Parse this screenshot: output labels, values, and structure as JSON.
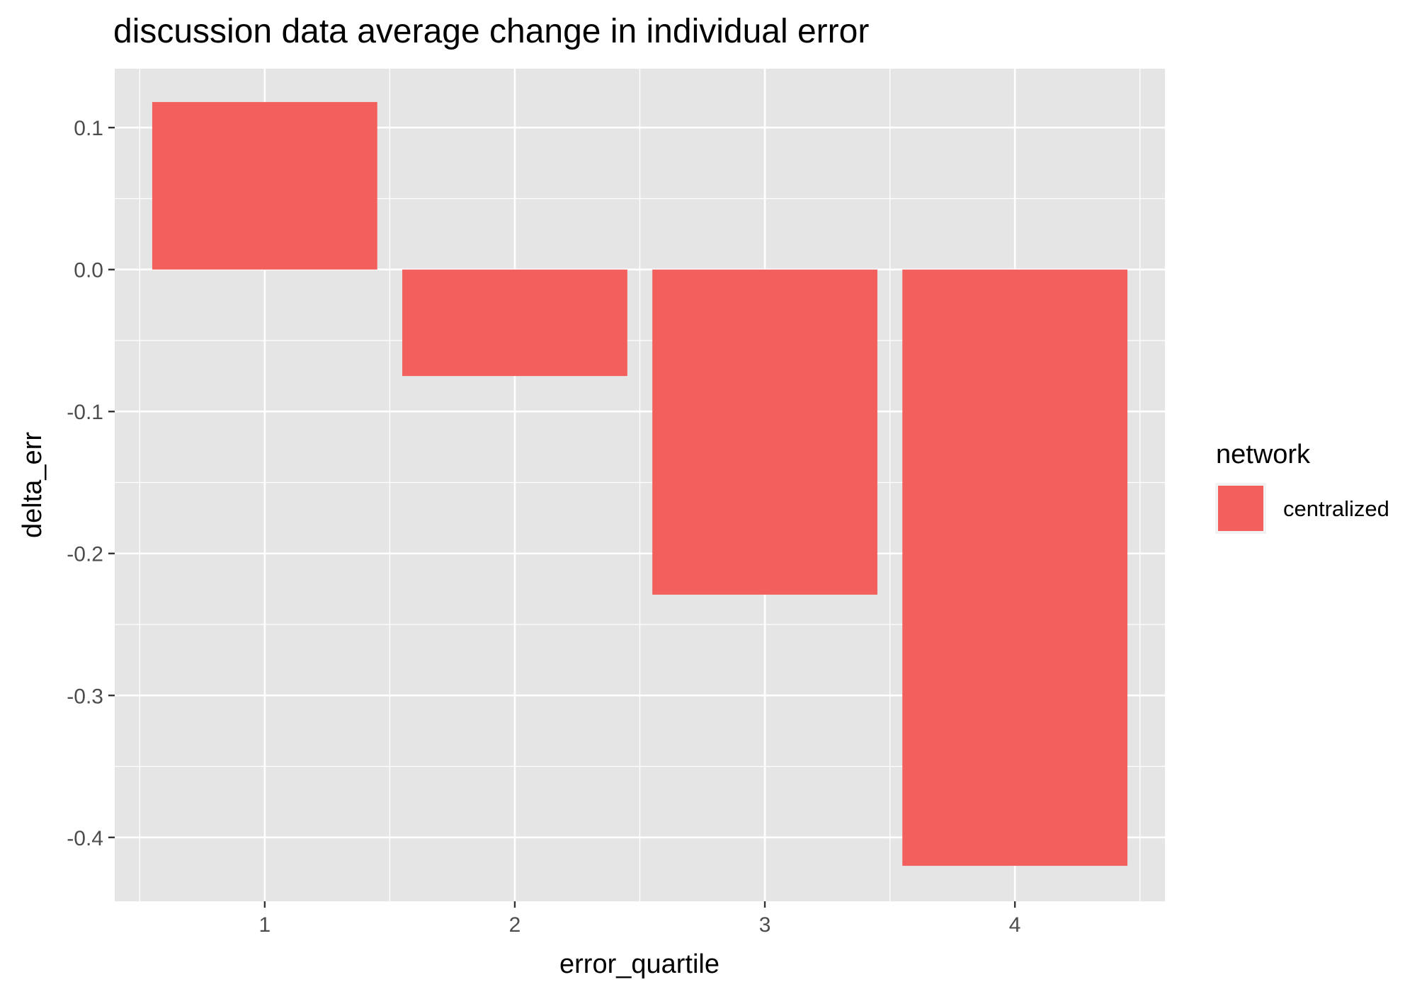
{
  "chart_data": {
    "type": "bar",
    "title": "discussion data average change in individual error",
    "xlabel": "error_quartile",
    "ylabel": "delta_err",
    "categories": [
      "1",
      "2",
      "3",
      "4"
    ],
    "series": [
      {
        "name": "centralized",
        "values": [
          0.118,
          -0.075,
          -0.229,
          -0.42
        ]
      }
    ],
    "ylim": [
      -0.445,
      0.1415
    ],
    "yticks": [
      0.1,
      0.0,
      -0.1,
      -0.2,
      -0.3,
      -0.4
    ],
    "ytick_labels": [
      "0.1",
      "0.0",
      "-0.1",
      "-0.2",
      "-0.3",
      "-0.4"
    ],
    "grid": true,
    "legend": {
      "title": "network",
      "position": "right"
    },
    "colors": {
      "bar": "#F25F5C",
      "panel": "#E5E5E5",
      "grid": "#FFFFFF",
      "tick": "#333333"
    }
  }
}
